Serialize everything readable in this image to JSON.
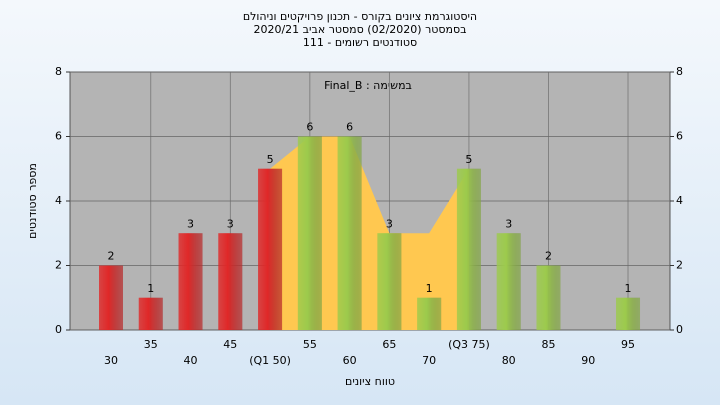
{
  "chart_data": {
    "type": "bar",
    "title_lines": [
      "היסטוגרמת ציונים בקורס - תכנון פרויקטים וניהולם",
      "בסמסטר (02/2020) סמסטר אביב 2020/21",
      "סטודנטים רשומים - 111"
    ],
    "annotation": "Final_B : במשימה",
    "x_label": "טווח ציונים",
    "y_label": "מספר סטודנטים",
    "categories": [
      "30",
      "35",
      "40",
      "45",
      "(Q1 50)",
      "55",
      "60",
      "65",
      "70",
      "(Q3 75)",
      "80",
      "85",
      "90",
      "95"
    ],
    "values": [
      2,
      1,
      3,
      3,
      5,
      6,
      6,
      3,
      1,
      5,
      3,
      2,
      0,
      1
    ],
    "value_labels": [
      "2",
      "1",
      "3",
      "3",
      "5",
      "6",
      "6",
      "3",
      "1",
      "5",
      "3",
      "2",
      null,
      "1"
    ],
    "colors": [
      "#e02828",
      "#e02828",
      "#e02828",
      "#e02828",
      "#e02828",
      "#9ccb4c",
      "#9ccb4c",
      "#9ccb4c",
      "#9ccb4c",
      "#9ccb4c",
      "#9ccb4c",
      "#9ccb4c",
      "#9ccb4c",
      "#9ccb4c"
    ],
    "area": {
      "color": "#ffc850",
      "values": [
        null,
        null,
        null,
        null,
        5,
        6,
        6,
        3,
        3,
        5,
        null,
        null,
        null,
        null
      ]
    },
    "ylim": [
      0,
      8
    ],
    "yticks": [
      0,
      2,
      4,
      6,
      8
    ],
    "grid": true
  }
}
